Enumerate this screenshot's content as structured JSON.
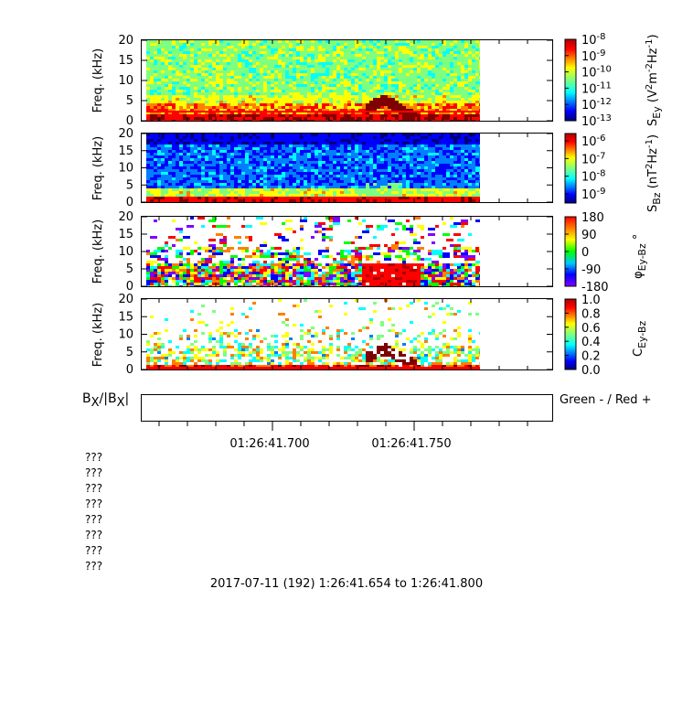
{
  "chart_data": [
    {
      "type": "heatmap",
      "ylabel": "Freq. (kHz)",
      "yticks": [
        "20",
        "15",
        "10",
        "5",
        "0"
      ],
      "ylim": [
        0,
        20
      ],
      "colorbar": {
        "label": "S_Ey (V^2 m^-2 Hz^-1)",
        "ticks": [
          "10-8",
          "10-9",
          "10-10",
          "10-11",
          "10-12",
          "10-13"
        ],
        "scale": "log",
        "range": [
          1e-13,
          1e-08
        ]
      },
      "features": [
        "broadband noise below ~5 kHz",
        "chorus-like tone near 2-7 kHz around 01:26:41.735"
      ]
    },
    {
      "type": "heatmap",
      "ylabel": "Freq. (kHz)",
      "yticks": [
        "20",
        "15",
        "10",
        "5",
        "0"
      ],
      "ylim": [
        0,
        20
      ],
      "colorbar": {
        "label": "S_Bz (nT^2 Hz^-1)",
        "ticks": [
          "10-6",
          "10-7",
          "10-8",
          "10-9"
        ],
        "scale": "log",
        "range": [
          3e-10,
          1e-06
        ]
      }
    },
    {
      "type": "heatmap",
      "ylabel": "Freq. (kHz)",
      "yticks": [
        "20",
        "15",
        "10",
        "5",
        "0"
      ],
      "ylim": [
        0,
        20
      ],
      "colorbar": {
        "label": "φ_Ey-Bz °",
        "ticks": [
          "180",
          "90",
          "0",
          "-90",
          "-180"
        ],
        "range": [
          -180,
          180
        ]
      }
    },
    {
      "type": "heatmap",
      "ylabel": "Freq. (kHz)",
      "yticks": [
        "20",
        "15",
        "10",
        "5",
        "0"
      ],
      "ylim": [
        0,
        20
      ],
      "colorbar": {
        "label": "C_Ey-Bz",
        "ticks": [
          "1.0",
          "0.8",
          "0.6",
          "0.4",
          "0.2",
          "0.0"
        ],
        "range": [
          0,
          1
        ]
      }
    },
    {
      "type": "line",
      "ylabel": "B_X/|B_X|",
      "legend": "Green - / Red +",
      "x_ticks": [
        "01:26:41.700",
        "01:26:41.750"
      ]
    }
  ],
  "text": {
    "qmarks": [
      "???",
      "???",
      "???",
      "???",
      "???",
      "???",
      "???",
      "???"
    ],
    "footer": "2017-07-11 (192) 1:26:41.654 to 1:26:41.800",
    "bx_legend": "Green - / Red +"
  },
  "colors": {
    "jet": [
      "#00007f",
      "#0000ff",
      "#007fff",
      "#00ffff",
      "#7fff7f",
      "#ffff00",
      "#ff7f00",
      "#ff0000",
      "#7f0000"
    ],
    "phase": [
      "#7f00ff",
      "#0000ff",
      "#00ffff",
      "#00ff00",
      "#ffff00",
      "#ff7f00",
      "#ff0000"
    ]
  }
}
